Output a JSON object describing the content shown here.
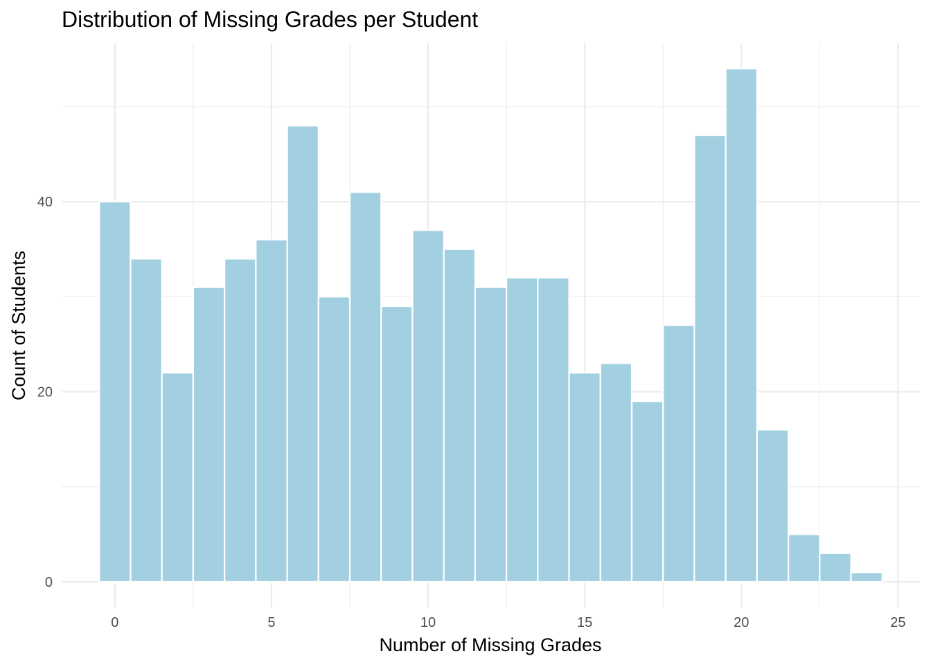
{
  "chart_data": {
    "type": "bar",
    "title": "Distribution of Missing Grades per Student",
    "xlabel": "Number of Missing Grades",
    "ylabel": "Count of Students",
    "x": [
      0,
      1,
      2,
      3,
      4,
      5,
      6,
      7,
      8,
      9,
      10,
      11,
      12,
      13,
      14,
      15,
      16,
      17,
      18,
      19,
      20,
      21,
      22,
      23,
      24
    ],
    "values": [
      40,
      34,
      22,
      31,
      34,
      36,
      48,
      30,
      41,
      29,
      37,
      35,
      31,
      32,
      32,
      22,
      23,
      19,
      27,
      47,
      54,
      16,
      5,
      3,
      1
    ],
    "xlim": [
      -1.7,
      25.7
    ],
    "ylim": [
      -2.7,
      56.7
    ],
    "x_ticks": [
      0,
      5,
      10,
      15,
      20,
      25
    ],
    "x_tick_labels": [
      "0",
      "5",
      "10",
      "15",
      "20",
      "25"
    ],
    "y_ticks": [
      0,
      20,
      40
    ],
    "y_tick_labels": [
      "0",
      "20",
      "40"
    ],
    "grid": true,
    "bar_color": "#a2d0e1",
    "bar_edge_color": "#ffffff",
    "grid_color": "#ebebeb",
    "background": "#ffffff"
  }
}
